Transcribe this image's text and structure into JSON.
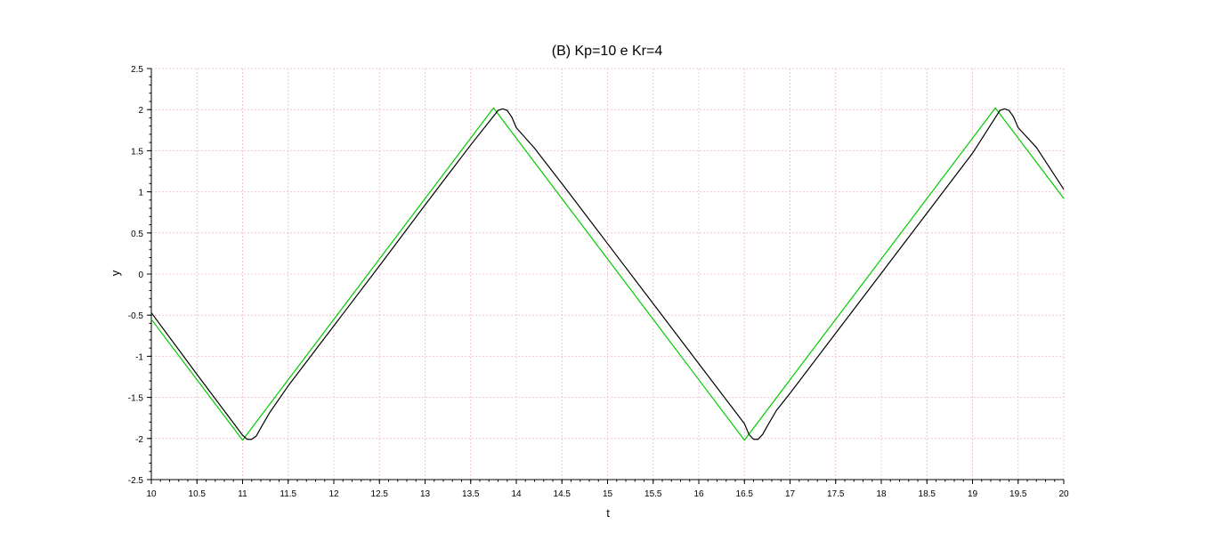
{
  "chart_data": {
    "type": "line",
    "title": "(B) Kp=10 e Kr=4",
    "xlabel": "t",
    "ylabel": "y",
    "xlim": [
      10,
      20
    ],
    "ylim": [
      -2.5,
      2.5
    ],
    "grid": true,
    "x_ticks": [
      "10",
      "10.5",
      "11",
      "11.5",
      "12",
      "12.5",
      "13",
      "13.5",
      "14",
      "14.5",
      "15",
      "15.5",
      "16",
      "16.5",
      "17",
      "17.5",
      "18",
      "18.5",
      "19",
      "19.5",
      "20"
    ],
    "y_ticks": [
      "2.5",
      "2",
      "1.5",
      "1",
      "0.5",
      "0",
      "-0.5",
      "-1",
      "-1.5",
      "-2",
      "-2.5"
    ],
    "series": [
      {
        "color": "#00cc00",
        "points": [
          [
            10,
            -0.55
          ],
          [
            11.0,
            -2.02
          ],
          [
            13.75,
            2.02
          ],
          [
            16.5,
            -2.02
          ],
          [
            19.25,
            2.02
          ],
          [
            20,
            0.92
          ]
        ]
      },
      {
        "color": "#000000",
        "points": [
          [
            10,
            -0.47
          ],
          [
            10.5,
            -1.22
          ],
          [
            11.0,
            -1.96
          ],
          [
            11.05,
            -2.01
          ],
          [
            11.1,
            -2.01
          ],
          [
            11.15,
            -1.97
          ],
          [
            11.2,
            -1.87
          ],
          [
            11.3,
            -1.68
          ],
          [
            11.5,
            -1.36
          ],
          [
            12.0,
            -0.63
          ],
          [
            12.5,
            0.1
          ],
          [
            13.0,
            0.84
          ],
          [
            13.5,
            1.57
          ],
          [
            13.8,
            1.99
          ],
          [
            13.85,
            2.01
          ],
          [
            13.9,
            1.99
          ],
          [
            13.95,
            1.91
          ],
          [
            14.0,
            1.78
          ],
          [
            14.2,
            1.53
          ],
          [
            14.5,
            1.1
          ],
          [
            15.0,
            0.37
          ],
          [
            15.5,
            -0.36
          ],
          [
            16.0,
            -1.09
          ],
          [
            16.5,
            -1.82
          ],
          [
            16.55,
            -1.95
          ],
          [
            16.6,
            -2.01
          ],
          [
            16.65,
            -2.01
          ],
          [
            16.7,
            -1.95
          ],
          [
            16.75,
            -1.85
          ],
          [
            16.85,
            -1.66
          ],
          [
            17.0,
            -1.45
          ],
          [
            17.5,
            -0.72
          ],
          [
            18.0,
            0.01
          ],
          [
            18.5,
            0.74
          ],
          [
            19.0,
            1.47
          ],
          [
            19.3,
            1.99
          ],
          [
            19.35,
            2.01
          ],
          [
            19.4,
            1.99
          ],
          [
            19.45,
            1.91
          ],
          [
            19.5,
            1.78
          ],
          [
            19.7,
            1.54
          ],
          [
            20.0,
            1.03
          ]
        ]
      }
    ]
  }
}
